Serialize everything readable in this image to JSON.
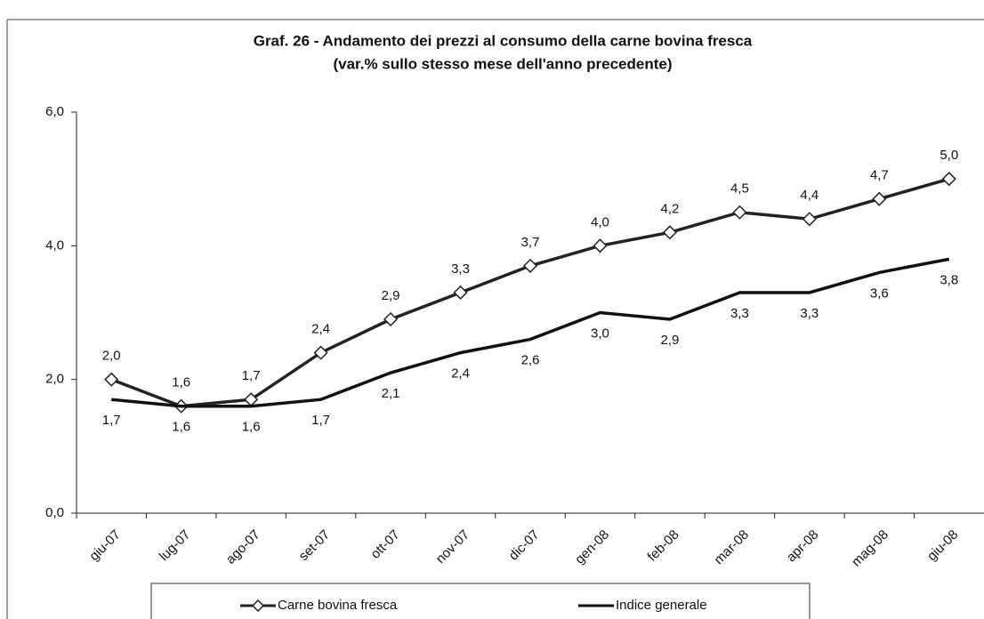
{
  "chart_data": {
    "type": "line",
    "title": "Graf. 26 - Andamento dei prezzi al consumo della carne bovina fresca",
    "subtitle": "(var.% sullo stesso mese dell'anno precedente)",
    "categories": [
      "giu-07",
      "lug-07",
      "ago-07",
      "set-07",
      "ott-07",
      "nov-07",
      "dic-07",
      "gen-08",
      "feb-08",
      "mar-08",
      "apr-08",
      "mag-08",
      "giu-08"
    ],
    "series": [
      {
        "name": "Carne bovina fresca",
        "color": "#222222",
        "marker": "diamond",
        "values": [
          2.0,
          1.6,
          1.7,
          2.4,
          2.9,
          3.3,
          3.7,
          4.0,
          4.2,
          4.5,
          4.4,
          4.7,
          5.0
        ],
        "value_labels": [
          "2,0",
          "1,6",
          "1,7",
          "2,4",
          "2,9",
          "3,3",
          "3,7",
          "4,0",
          "4,2",
          "4,5",
          "4,4",
          "4,7",
          "5,0"
        ]
      },
      {
        "name": "Indice generale",
        "color": "#111111",
        "values": [
          1.7,
          1.6,
          1.6,
          1.7,
          2.1,
          2.4,
          2.6,
          3.0,
          2.9,
          3.3,
          3.3,
          3.6,
          3.8
        ],
        "value_labels": [
          "1,7",
          "1,6",
          "1,6",
          "1,7",
          "2,1",
          "2,4",
          "2,6",
          "3,0",
          "2,9",
          "3,3",
          "3,3",
          "3,6",
          "3,8"
        ]
      }
    ],
    "ylim": [
      0,
      6
    ],
    "yticks": [
      {
        "value": 0,
        "label": "0,0"
      },
      {
        "value": 2,
        "label": "2,0"
      },
      {
        "value": 4,
        "label": "4,0"
      },
      {
        "value": 6,
        "label": "6,0"
      }
    ],
    "legend": "bottom"
  }
}
